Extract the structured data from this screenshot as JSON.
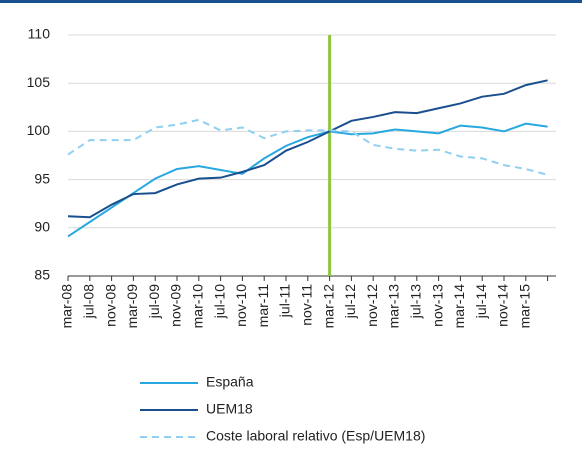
{
  "chart_data": {
    "type": "line",
    "categories": [
      "mar-08",
      "jul-08",
      "nov-08",
      "mar-09",
      "jul-09",
      "nov-09",
      "mar-10",
      "jul-10",
      "nov-10",
      "mar-11",
      "jul-11",
      "nov-11",
      "mar-12",
      "jul-12",
      "nov-12",
      "mar-13",
      "jul-13",
      "nov-13",
      "mar-14",
      "jul-14",
      "nov-14",
      "mar-15",
      null
    ],
    "series": [
      {
        "name": "España",
        "color": "#29a8e0",
        "dash": false,
        "values": [
          89.1,
          90.6,
          92.1,
          93.6,
          95.1,
          96.1,
          96.4,
          96.0,
          95.6,
          97.2,
          98.5,
          99.4,
          100.0,
          99.7,
          99.8,
          100.2,
          100.0,
          99.8,
          100.6,
          100.4,
          100.0,
          100.8,
          100.5
        ]
      },
      {
        "name": "UEM18",
        "color": "#1a4f8f",
        "dash": false,
        "values": [
          91.2,
          91.1,
          92.4,
          93.5,
          93.6,
          94.5,
          95.1,
          95.2,
          95.8,
          96.5,
          98.0,
          98.9,
          100.0,
          101.1,
          101.5,
          102.0,
          101.9,
          102.4,
          102.9,
          103.6,
          103.9,
          104.8,
          105.3
        ]
      },
      {
        "name": "Coste laboral relativo (Esp/UEM18)",
        "color": "#8fd0f0",
        "dash": true,
        "values": [
          97.6,
          99.1,
          99.1,
          99.1,
          100.4,
          100.7,
          101.2,
          100.1,
          100.4,
          99.3,
          100.0,
          100.1,
          100.1,
          100.0,
          98.6,
          98.2,
          98.0,
          98.1,
          97.4,
          97.2,
          96.5,
          96.1,
          95.5
        ]
      }
    ],
    "ylim": [
      85,
      110
    ],
    "yticks": [
      85,
      90,
      95,
      100,
      105,
      110
    ],
    "grid": true,
    "marker_category": "mar-12",
    "marker_color": "#8dc63f"
  }
}
